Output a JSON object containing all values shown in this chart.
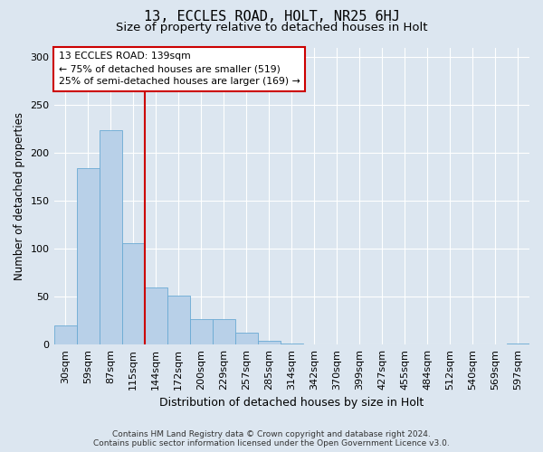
{
  "title1": "13, ECCLES ROAD, HOLT, NR25 6HJ",
  "title2": "Size of property relative to detached houses in Holt",
  "xlabel": "Distribution of detached houses by size in Holt",
  "ylabel": "Number of detached properties",
  "footer_line1": "Contains HM Land Registry data © Crown copyright and database right 2024.",
  "footer_line2": "Contains public sector information licensed under the Open Government Licence v3.0.",
  "annotation_line1": "13 ECCLES ROAD: 139sqm",
  "annotation_line2": "← 75% of detached houses are smaller (519)",
  "annotation_line3": "25% of semi-detached houses are larger (169) →",
  "bar_labels": [
    "30sqm",
    "59sqm",
    "87sqm",
    "115sqm",
    "144sqm",
    "172sqm",
    "200sqm",
    "229sqm",
    "257sqm",
    "285sqm",
    "314sqm",
    "342sqm",
    "370sqm",
    "399sqm",
    "427sqm",
    "455sqm",
    "484sqm",
    "512sqm",
    "540sqm",
    "569sqm",
    "597sqm"
  ],
  "bar_values": [
    20,
    184,
    224,
    106,
    60,
    51,
    27,
    27,
    12,
    4,
    1,
    0,
    0,
    0,
    0,
    0,
    0,
    0,
    0,
    0,
    1
  ],
  "bar_color": "#b8d0e8",
  "bar_edge_color": "#6aaad4",
  "vline_index": 4,
  "vline_color": "#cc0000",
  "ylim": [
    0,
    310
  ],
  "yticks": [
    0,
    50,
    100,
    150,
    200,
    250,
    300
  ],
  "background_color": "#dce6f0",
  "plot_bg_color": "#dce6f0",
  "grid_color": "#ffffff",
  "title1_fontsize": 11,
  "title2_fontsize": 9.5,
  "xlabel_fontsize": 9,
  "ylabel_fontsize": 8.5,
  "tick_fontsize": 8
}
